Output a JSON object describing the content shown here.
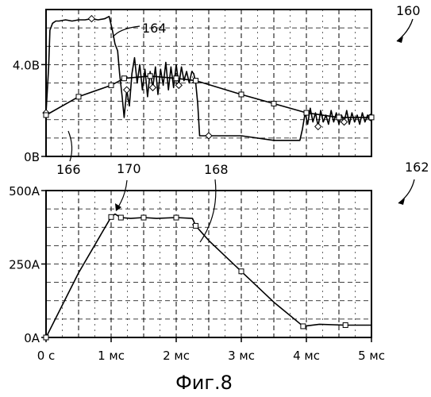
{
  "caption": "Фиг.8",
  "reference_numerals": {
    "figure_top": "160",
    "figure_bottom": "162",
    "trace_164": "164",
    "trace_166": "166",
    "trace_168": "168",
    "point_170": "170"
  },
  "colors": {
    "line": "#000000",
    "grid": "#000000",
    "background": "#ffffff"
  },
  "chart_data": [
    {
      "type": "line",
      "grid": true,
      "xlim": [
        0,
        5
      ],
      "ylim": [
        0,
        6.4
      ],
      "y_tick_labels": [
        "4.0В",
        "0В"
      ],
      "y_tick_values": [
        4.0,
        0
      ],
      "series": [
        {
          "marker": "diamond",
          "x": [
            0,
            0.04,
            0.06,
            0.1,
            0.15,
            0.2,
            0.3,
            0.4,
            0.5,
            0.6,
            0.7,
            0.8,
            0.9,
            0.97,
            1.02,
            1.06,
            1.1,
            1.13,
            1.17,
            1.2,
            1.24,
            1.28,
            1.32,
            1.36,
            1.4,
            1.44,
            1.48,
            1.52,
            1.56,
            1.6,
            1.64,
            1.68,
            1.72,
            1.76,
            1.8,
            1.84,
            1.88,
            1.92,
            1.96,
            2.0,
            2.04,
            2.08,
            2.12,
            2.16,
            2.2,
            2.24,
            2.27,
            2.3,
            2.33,
            2.36,
            2.5,
            3.0,
            3.5,
            3.9,
            3.94,
            3.98,
            4.02,
            4.06,
            4.1,
            4.14,
            4.18,
            4.22,
            4.26,
            4.3,
            4.34,
            4.38,
            4.42,
            4.46,
            4.5,
            4.54,
            4.58,
            4.62,
            4.66,
            4.7,
            4.74,
            4.78,
            4.82,
            4.86,
            4.9,
            4.94,
            4.98
          ],
          "y": [
            1.9,
            3.9,
            5.5,
            5.8,
            5.9,
            5.9,
            5.95,
            5.9,
            5.95,
            5.95,
            6.0,
            5.95,
            6.0,
            6.1,
            5.5,
            4.9,
            4.6,
            3.6,
            2.6,
            1.7,
            2.9,
            2.2,
            3.6,
            4.3,
            3.2,
            4.0,
            2.9,
            3.8,
            2.6,
            3.7,
            3.0,
            3.9,
            2.7,
            3.8,
            3.1,
            4.1,
            2.9,
            3.9,
            3.0,
            4.0,
            3.1,
            3.9,
            3.3,
            3.7,
            3.2,
            3.7,
            3.6,
            3.2,
            2.3,
            0.9,
            0.9,
            0.9,
            0.7,
            0.7,
            1.2,
            1.9,
            1.4,
            2.1,
            1.5,
            1.9,
            1.3,
            2.0,
            1.5,
            1.8,
            1.4,
            2.0,
            1.5,
            1.9,
            1.4,
            1.8,
            1.5,
            2.0,
            1.4,
            1.9,
            1.5,
            1.8,
            1.4,
            1.9,
            1.5,
            1.8,
            1.7
          ]
        },
        {
          "marker": "square",
          "x": [
            0,
            0.5,
            1.0,
            1.2,
            1.6,
            2.0,
            2.3,
            3.0,
            3.5,
            4.0,
            4.5,
            5.0
          ],
          "y": [
            1.8,
            2.6,
            3.1,
            3.4,
            3.5,
            3.4,
            3.3,
            2.7,
            2.3,
            1.9,
            1.7,
            1.7
          ]
        }
      ]
    },
    {
      "type": "line",
      "grid": true,
      "xlim": [
        0,
        5
      ],
      "ylim": [
        0,
        500
      ],
      "x_tick_labels": [
        "0 с",
        "1 мс",
        "2 мс",
        "3 мс",
        "4 мс",
        "5 мс"
      ],
      "x_tick_values": [
        0,
        1,
        2,
        3,
        4,
        5
      ],
      "y_tick_labels": [
        "500A",
        "250A",
        "0A"
      ],
      "y_tick_values": [
        500,
        250,
        0
      ],
      "series": [
        {
          "marker": "square",
          "x": [
            0,
            0.5,
            1.0,
            1.06,
            1.15,
            1.3,
            1.5,
            1.7,
            2.0,
            2.25,
            2.3,
            2.5,
            3.0,
            3.5,
            3.95,
            4.2,
            4.6,
            5.0
          ],
          "y": [
            0,
            220,
            410,
            420,
            408,
            405,
            408,
            405,
            408,
            405,
            380,
            330,
            225,
            120,
            38,
            45,
            42,
            42
          ]
        }
      ]
    }
  ]
}
